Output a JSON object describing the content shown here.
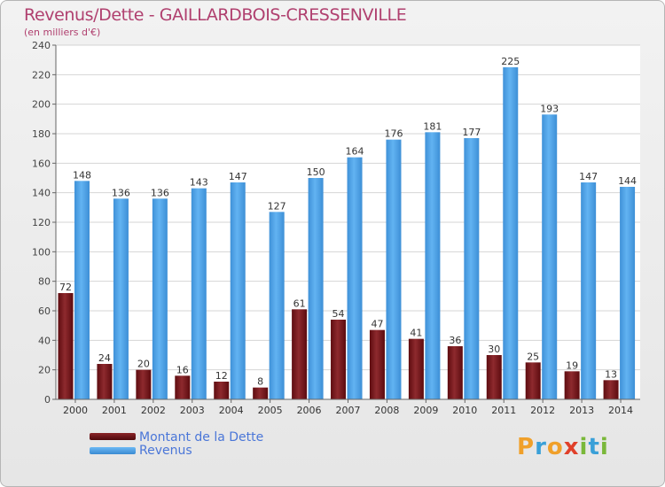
{
  "title": "Revenus/Dette - GAILLARDBOIS-CRESSENVILLE",
  "subtitle": "(en milliers d'€)",
  "chart_data": {
    "type": "bar",
    "categories": [
      "2000",
      "2001",
      "2002",
      "2003",
      "2004",
      "2005",
      "2006",
      "2007",
      "2008",
      "2009",
      "2010",
      "2011",
      "2012",
      "2013",
      "2014"
    ],
    "series": [
      {
        "name": "Montant de la Dette",
        "color": "#7a1418",
        "values": [
          72,
          24,
          20,
          16,
          12,
          8,
          61,
          54,
          47,
          41,
          36,
          30,
          25,
          19,
          13
        ]
      },
      {
        "name": "Revenus",
        "color": "#4da0e6",
        "values": [
          148,
          136,
          136,
          143,
          147,
          127,
          150,
          164,
          176,
          181,
          177,
          225,
          193,
          147,
          144
        ]
      }
    ],
    "yticks": [
      0,
      20,
      40,
      60,
      80,
      100,
      120,
      140,
      160,
      180,
      200,
      220,
      240
    ],
    "ylim": [
      0,
      240
    ],
    "grid": true,
    "legend": "bottom-left"
  },
  "legend": {
    "debt_label": "Montant de la Dette",
    "revenue_label": "Revenus"
  },
  "logo": {
    "letters": [
      "P",
      "r",
      "o",
      "x",
      "i",
      "t",
      "i"
    ]
  }
}
